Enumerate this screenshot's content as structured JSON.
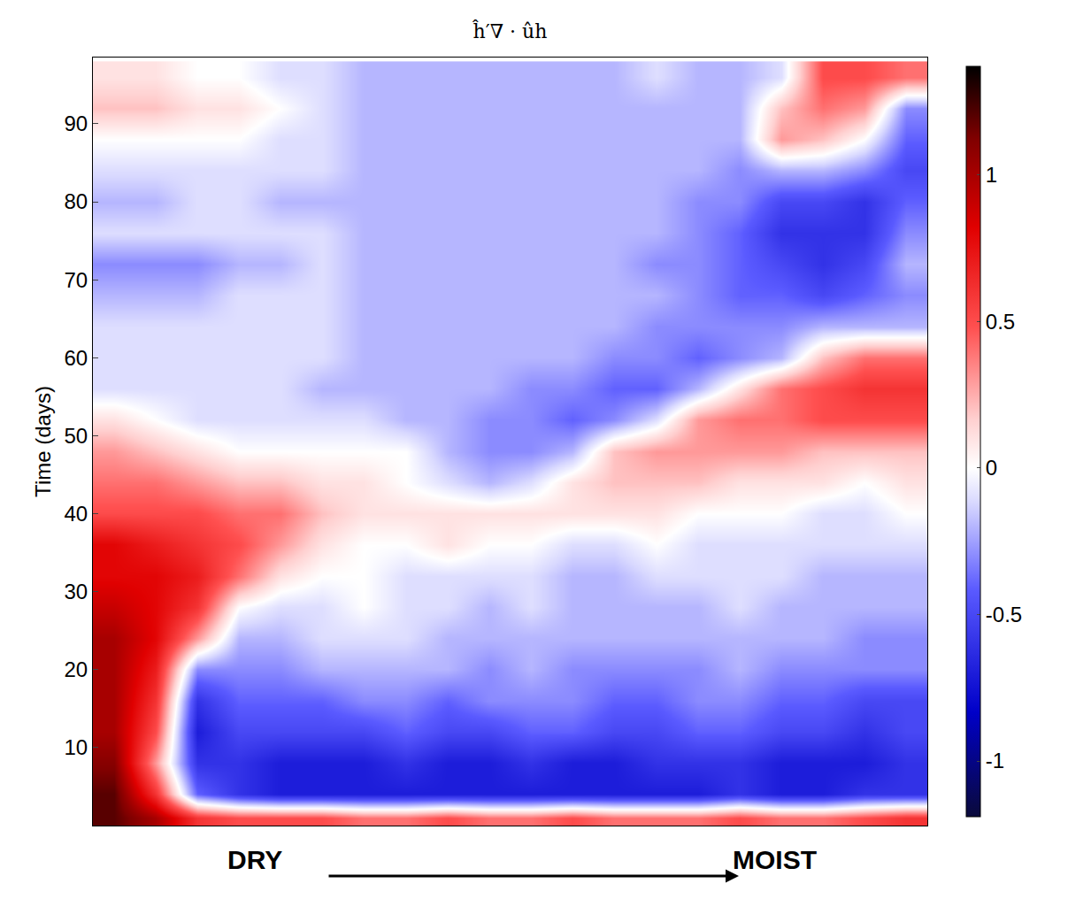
{
  "chart_data": {
    "type": "heatmap",
    "title": "ĥ′∇ · ûh",
    "y_label": "Time (days)",
    "annotations": [
      "DRY",
      "MOIST"
    ],
    "tick_labels": "y",
    "grid": false,
    "ylim": [
      0,
      98.5
    ],
    "yticks": [
      10,
      20,
      30,
      40,
      50,
      60,
      70,
      80,
      90
    ],
    "y": [
      1,
      4,
      8,
      12,
      16,
      20,
      24,
      28,
      32,
      36,
      40,
      44,
      48,
      52,
      56,
      60,
      64,
      68,
      72,
      76,
      80,
      84,
      88,
      92,
      96
    ],
    "cells": [
      [
        1.2,
        1.0,
        0.6,
        0.5,
        0.5,
        0.5,
        0.4,
        0.4,
        0.5,
        0.4,
        0.4,
        0.5,
        0.4,
        0.4,
        0.4,
        0.5,
        0.4,
        0.4,
        0.5,
        0.6
      ],
      [
        1.2,
        0.6,
        -0.4,
        -0.6,
        -0.7,
        -0.7,
        -0.7,
        -0.7,
        -0.7,
        -0.7,
        -0.7,
        -0.7,
        -0.7,
        -0.7,
        -0.7,
        -0.6,
        -0.7,
        -0.7,
        -0.6,
        -0.6
      ],
      [
        1.1,
        0.3,
        -0.6,
        -0.6,
        -0.7,
        -0.7,
        -0.7,
        -0.6,
        -0.7,
        -0.7,
        -0.6,
        -0.7,
        -0.7,
        -0.6,
        -0.6,
        -0.6,
        -0.7,
        -0.7,
        -0.7,
        -0.6
      ],
      [
        1.0,
        0.5,
        -0.7,
        -0.5,
        -0.5,
        -0.5,
        -0.5,
        -0.4,
        -0.5,
        -0.5,
        -0.4,
        -0.4,
        -0.5,
        -0.5,
        -0.4,
        -0.4,
        -0.5,
        -0.5,
        -0.6,
        -0.5
      ],
      [
        1.0,
        0.6,
        -0.6,
        -0.4,
        -0.4,
        -0.4,
        -0.3,
        -0.3,
        -0.4,
        -0.3,
        -0.3,
        -0.3,
        -0.4,
        -0.4,
        -0.3,
        -0.3,
        -0.4,
        -0.4,
        -0.5,
        -0.5
      ],
      [
        1.0,
        0.7,
        -0.3,
        -0.3,
        -0.3,
        -0.2,
        -0.2,
        -0.2,
        -0.2,
        -0.3,
        -0.2,
        -0.3,
        -0.3,
        -0.3,
        -0.3,
        -0.2,
        -0.3,
        -0.3,
        -0.3,
        -0.3
      ],
      [
        1.0,
        0.8,
        0.3,
        -0.2,
        -0.2,
        -0.1,
        -0.1,
        -0.1,
        -0.2,
        -0.2,
        -0.2,
        -0.2,
        -0.2,
        -0.2,
        -0.2,
        -0.2,
        -0.2,
        -0.2,
        -0.3,
        -0.3
      ],
      [
        0.9,
        0.8,
        0.6,
        0.0,
        -0.1,
        -0.1,
        0.0,
        -0.1,
        -0.1,
        -0.2,
        -0.1,
        -0.2,
        -0.2,
        -0.2,
        -0.2,
        -0.1,
        -0.2,
        -0.2,
        -0.2,
        -0.2
      ],
      [
        0.8,
        0.8,
        0.7,
        0.4,
        0.1,
        0.0,
        0.0,
        -0.1,
        -0.1,
        -0.1,
        -0.1,
        -0.2,
        -0.2,
        -0.1,
        -0.1,
        -0.1,
        -0.1,
        -0.2,
        -0.2,
        -0.2
      ],
      [
        0.8,
        0.7,
        0.6,
        0.5,
        0.3,
        0.1,
        0.0,
        0.0,
        0.1,
        0.0,
        0.0,
        -0.1,
        -0.1,
        0.0,
        -0.1,
        -0.1,
        -0.1,
        -0.1,
        -0.1,
        -0.1
      ],
      [
        0.5,
        0.5,
        0.5,
        0.4,
        0.4,
        0.2,
        0.1,
        0.1,
        0.1,
        0.1,
        0.1,
        0.1,
        0.1,
        0.1,
        0.0,
        0.0,
        0.0,
        -0.1,
        -0.1,
        0.0
      ],
      [
        0.4,
        0.4,
        0.3,
        0.2,
        0.2,
        0.1,
        0.1,
        0.0,
        -0.1,
        -0.2,
        -0.1,
        0.1,
        0.2,
        0.2,
        0.2,
        0.1,
        0.1,
        0.1,
        0.0,
        0.1
      ],
      [
        0.3,
        0.2,
        0.1,
        0.0,
        0.0,
        0.0,
        0.0,
        0.0,
        -0.2,
        -0.3,
        -0.3,
        -0.2,
        0.2,
        0.3,
        0.3,
        0.3,
        0.3,
        0.2,
        0.2,
        0.2
      ],
      [
        0.1,
        0.0,
        -0.1,
        -0.1,
        -0.1,
        -0.1,
        -0.1,
        -0.2,
        -0.2,
        -0.3,
        -0.3,
        -0.4,
        -0.3,
        -0.1,
        0.3,
        0.4,
        0.4,
        0.5,
        0.5,
        0.5
      ],
      [
        -0.1,
        -0.1,
        -0.1,
        -0.1,
        -0.1,
        -0.2,
        -0.2,
        -0.2,
        -0.2,
        -0.2,
        -0.3,
        -0.3,
        -0.4,
        -0.4,
        -0.2,
        0.1,
        0.4,
        0.5,
        0.6,
        0.6
      ],
      [
        -0.1,
        -0.1,
        -0.1,
        -0.1,
        -0.1,
        -0.1,
        -0.2,
        -0.2,
        -0.2,
        -0.2,
        -0.2,
        -0.2,
        -0.3,
        -0.3,
        -0.4,
        -0.3,
        -0.2,
        0.2,
        0.4,
        0.4
      ],
      [
        -0.1,
        -0.1,
        -0.1,
        -0.1,
        -0.1,
        -0.1,
        -0.2,
        -0.2,
        -0.2,
        -0.2,
        -0.2,
        -0.2,
        -0.2,
        -0.3,
        -0.3,
        -0.3,
        -0.3,
        -0.2,
        -0.2,
        -0.2
      ],
      [
        -0.2,
        -0.2,
        -0.2,
        -0.1,
        -0.1,
        -0.1,
        -0.2,
        -0.2,
        -0.2,
        -0.2,
        -0.2,
        -0.2,
        -0.2,
        -0.2,
        -0.3,
        -0.4,
        -0.4,
        -0.5,
        -0.4,
        -0.3
      ],
      [
        -0.3,
        -0.3,
        -0.3,
        -0.2,
        -0.2,
        -0.1,
        -0.2,
        -0.2,
        -0.2,
        -0.2,
        -0.2,
        -0.2,
        -0.2,
        -0.3,
        -0.3,
        -0.4,
        -0.5,
        -0.6,
        -0.5,
        -0.2
      ],
      [
        -0.1,
        -0.1,
        -0.1,
        -0.1,
        -0.1,
        -0.1,
        -0.2,
        -0.2,
        -0.2,
        -0.2,
        -0.2,
        -0.2,
        -0.2,
        -0.2,
        -0.3,
        -0.4,
        -0.6,
        -0.6,
        -0.6,
        -0.3
      ],
      [
        -0.2,
        -0.2,
        -0.1,
        -0.1,
        -0.2,
        -0.2,
        -0.2,
        -0.2,
        -0.2,
        -0.2,
        -0.2,
        -0.2,
        -0.2,
        -0.2,
        -0.3,
        -0.3,
        -0.5,
        -0.5,
        -0.6,
        -0.4
      ],
      [
        -0.1,
        -0.1,
        -0.1,
        -0.1,
        -0.1,
        -0.1,
        -0.2,
        -0.2,
        -0.2,
        -0.2,
        -0.2,
        -0.2,
        -0.2,
        -0.2,
        -0.2,
        -0.3,
        -0.2,
        -0.2,
        -0.3,
        -0.5
      ],
      [
        0.0,
        0.0,
        0.0,
        0.0,
        -0.1,
        -0.1,
        -0.2,
        -0.2,
        -0.2,
        -0.2,
        -0.2,
        -0.2,
        -0.2,
        -0.2,
        -0.2,
        -0.2,
        0.3,
        0.2,
        0.0,
        -0.4
      ],
      [
        0.2,
        0.2,
        0.1,
        0.1,
        0.0,
        -0.1,
        -0.2,
        -0.2,
        -0.2,
        -0.2,
        -0.2,
        -0.2,
        -0.2,
        -0.2,
        -0.2,
        -0.2,
        0.2,
        0.4,
        0.3,
        -0.3
      ],
      [
        0.1,
        0.1,
        0.0,
        0.0,
        -0.1,
        -0.1,
        -0.2,
        -0.2,
        -0.2,
        -0.2,
        -0.2,
        -0.2,
        -0.2,
        -0.1,
        -0.2,
        -0.2,
        -0.1,
        0.5,
        0.5,
        0.4
      ]
    ],
    "colorbar": {
      "range": [
        -1.19,
        1.37
      ],
      "ticks": [
        -1,
        -0.5,
        0,
        0.5,
        1
      ]
    }
  }
}
